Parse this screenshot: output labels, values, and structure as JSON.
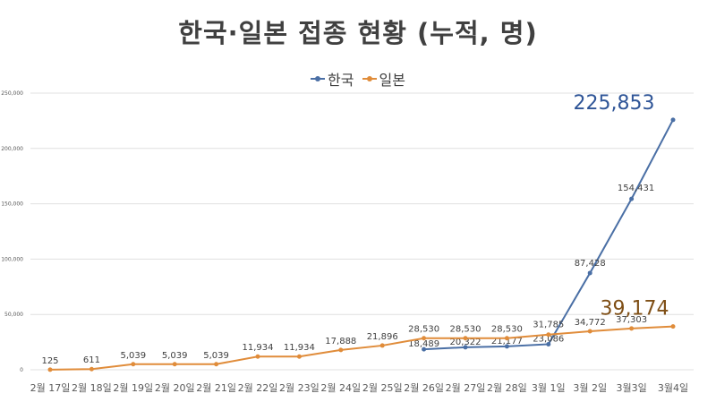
{
  "colors": {
    "korea": "#4a6fa5",
    "japan": "#e08c3a",
    "title": "#404040",
    "grid": "#e0e0e0",
    "axis_text": "#595959",
    "korea_final_label": "#2f5597",
    "japan_final_label": "#7f4f16"
  },
  "chart_data": {
    "type": "line",
    "title": "한국·일본 접종 현황 (누적, 명)",
    "categories": [
      "2월 17일",
      "2월 18일",
      "2월 19일",
      "2월 20일",
      "2월 21일",
      "2월 22일",
      "2월 23일",
      "2월 24일",
      "2월 25일",
      "2월 26일",
      "2월 27일",
      "2월 28일",
      "3월 1일",
      "3월 2일",
      "3월3일",
      "3월4일"
    ],
    "ylim": [
      0,
      250000
    ],
    "yticks": [
      "0",
      "50,000",
      "100,000",
      "150,000",
      "200,000",
      "250,000"
    ],
    "grid": true,
    "legend_position": "top-center",
    "series": [
      {
        "name": "한국",
        "values": [
          null,
          null,
          null,
          null,
          null,
          null,
          null,
          null,
          null,
          18489,
          20322,
          21177,
          23086,
          87428,
          154431,
          225853
        ],
        "labels": [
          "",
          "",
          "",
          "",
          "",
          "",
          "",
          "",
          "",
          "18,489",
          "20,322",
          "21,177",
          "23,086",
          "87,428",
          "154,431",
          "225,853"
        ]
      },
      {
        "name": "일본",
        "values": [
          125,
          611,
          5039,
          5039,
          5039,
          11934,
          11934,
          17888,
          21896,
          28530,
          28530,
          28530,
          31785,
          34772,
          37303,
          39174
        ],
        "labels": [
          "125",
          "611",
          "5,039",
          "5,039",
          "5,039",
          "11,934",
          "11,934",
          "17,888",
          "21,896",
          "28,530",
          "28,530",
          "28,530",
          "31,785",
          "34,772",
          "37,303",
          "39,174"
        ]
      }
    ]
  }
}
